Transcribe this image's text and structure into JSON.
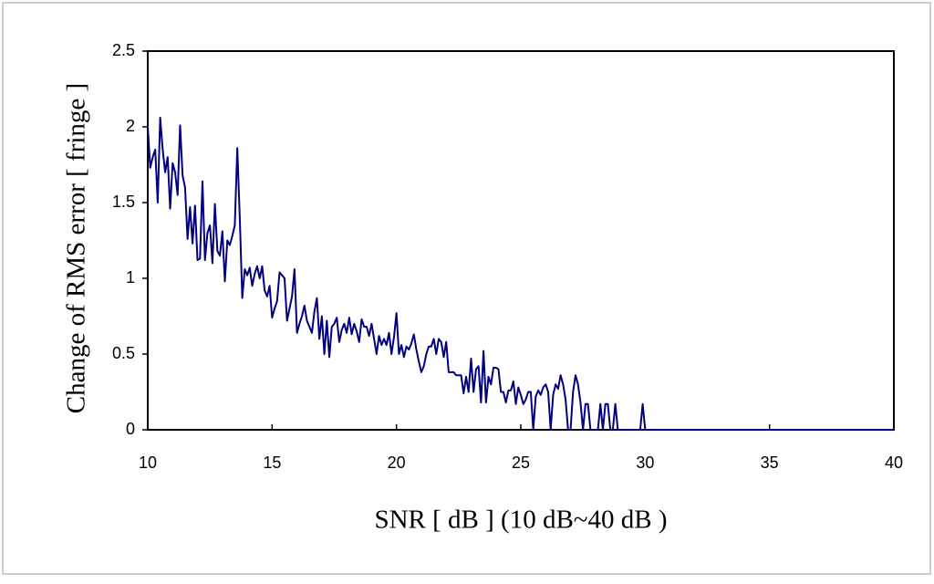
{
  "chart_data": {
    "type": "line",
    "x_label": "SNR [ dB ] (10 dB~40 dB )",
    "y_label": "Change of RMS error [ fringe ]",
    "x": [
      10,
      10.1,
      10.2,
      10.3,
      10.4,
      10.5,
      10.6,
      10.7,
      10.8,
      10.9,
      11,
      11.1,
      11.2,
      11.3,
      11.4,
      11.5,
      11.6,
      11.7,
      11.8,
      11.9,
      12,
      12.1,
      12.2,
      12.3,
      12.4,
      12.5,
      12.6,
      12.7,
      12.8,
      12.9,
      13,
      13.1,
      13.2,
      13.3,
      13.4,
      13.5,
      13.6,
      13.7,
      13.8,
      13.9,
      14,
      14.1,
      14.2,
      14.3,
      14.4,
      14.5,
      14.6,
      14.7,
      14.8,
      14.9,
      15,
      15.1,
      15.2,
      15.3,
      15.4,
      15.5,
      15.6,
      15.7,
      15.8,
      15.9,
      16,
      16.1,
      16.2,
      16.3,
      16.4,
      16.5,
      16.6,
      16.7,
      16.8,
      16.9,
      17,
      17.1,
      17.2,
      17.3,
      17.4,
      17.5,
      17.6,
      17.7,
      17.8,
      17.9,
      18,
      18.1,
      18.2,
      18.3,
      18.4,
      18.5,
      18.6,
      18.7,
      18.8,
      18.9,
      19,
      19.1,
      19.2,
      19.3,
      19.4,
      19.5,
      19.6,
      19.7,
      19.8,
      19.9,
      20,
      20.1,
      20.2,
      20.3,
      20.4,
      20.5,
      20.6,
      20.7,
      20.8,
      20.9,
      21,
      21.1,
      21.2,
      21.3,
      21.4,
      21.5,
      21.6,
      21.7,
      21.8,
      21.9,
      22,
      22.1,
      22.2,
      22.3,
      22.4,
      22.5,
      22.6,
      22.7,
      22.8,
      22.9,
      23,
      23.1,
      23.2,
      23.3,
      23.4,
      23.5,
      23.6,
      23.7,
      23.8,
      23.9,
      24,
      24.1,
      24.2,
      24.3,
      24.4,
      24.5,
      24.6,
      24.7,
      24.8,
      24.9,
      25,
      25.1,
      25.2,
      25.3,
      25.4,
      25.5,
      25.6,
      25.7,
      25.8,
      25.9,
      26,
      26.1,
      26.2,
      26.3,
      26.4,
      26.5,
      26.6,
      26.7,
      26.8,
      26.9,
      27,
      27.1,
      27.2,
      27.3,
      27.4,
      27.5,
      27.6,
      27.7,
      27.8,
      27.9,
      28,
      28.1,
      28.2,
      28.3,
      28.4,
      28.5,
      28.6,
      28.7,
      28.8,
      28.9,
      29,
      29.1,
      29.2,
      29.3,
      29.4,
      29.5,
      29.6,
      29.7,
      29.8,
      29.9,
      30,
      30.1,
      40
    ],
    "series": [
      {
        "color": "#000080",
        "values": [
          2.0,
          1.73,
          1.8,
          1.85,
          1.5,
          2.06,
          1.85,
          1.7,
          1.8,
          1.46,
          1.76,
          1.7,
          1.55,
          2.01,
          1.68,
          1.6,
          1.26,
          1.47,
          1.23,
          1.48,
          1.12,
          1.13,
          1.64,
          1.12,
          1.3,
          1.35,
          1.1,
          1.49,
          1.18,
          1.15,
          1.31,
          0.98,
          1.25,
          1.22,
          1.28,
          1.35,
          1.86,
          1.4,
          0.87,
          1.06,
          1.02,
          1.07,
          0.95,
          1.03,
          1.08,
          1.0,
          1.08,
          0.92,
          0.88,
          0.95,
          0.74,
          0.8,
          0.85,
          1.04,
          1.02,
          1.0,
          0.72,
          0.8,
          0.88,
          1.06,
          0.64,
          0.7,
          0.75,
          0.82,
          0.72,
          0.68,
          0.64,
          0.78,
          0.87,
          0.6,
          0.75,
          0.5,
          0.72,
          0.48,
          0.68,
          0.7,
          0.74,
          0.58,
          0.66,
          0.7,
          0.64,
          0.74,
          0.63,
          0.7,
          0.65,
          0.58,
          0.73,
          0.68,
          0.68,
          0.62,
          0.7,
          0.6,
          0.5,
          0.62,
          0.56,
          0.6,
          0.56,
          0.64,
          0.5,
          0.61,
          0.77,
          0.5,
          0.56,
          0.48,
          0.55,
          0.53,
          0.57,
          0.63,
          0.53,
          0.45,
          0.38,
          0.42,
          0.5,
          0.55,
          0.55,
          0.6,
          0.5,
          0.6,
          0.58,
          0.48,
          0.58,
          0.38,
          0.38,
          0.38,
          0.36,
          0.36,
          0.36,
          0.24,
          0.35,
          0.25,
          0.47,
          0.25,
          0.4,
          0.42,
          0.18,
          0.52,
          0.18,
          0.35,
          0.3,
          0.41,
          0.41,
          0.4,
          0.25,
          0.25,
          0.18,
          0.26,
          0.26,
          0.32,
          0.17,
          0.28,
          0.23,
          0.17,
          0.2,
          0.25,
          0.25,
          0,
          0.22,
          0.26,
          0.23,
          0.28,
          0.3,
          0.25,
          0,
          0.23,
          0.3,
          0.27,
          0.36,
          0.3,
          0.2,
          0,
          0,
          0.25,
          0.36,
          0.3,
          0.18,
          0,
          0.17,
          0.17,
          0,
          0,
          0,
          0,
          0.17,
          0,
          0.17,
          0.17,
          0,
          0,
          0.17,
          0,
          0,
          0,
          0,
          0,
          0,
          0,
          0,
          0,
          0,
          0.17,
          0,
          0,
          0
        ]
      }
    ],
    "xlim": [
      10,
      40
    ],
    "xticks": [
      10,
      15,
      20,
      25,
      30,
      35,
      40
    ],
    "ylim": [
      0,
      2.5
    ],
    "yticks": [
      0,
      0.5,
      1,
      1.5,
      2,
      2.5
    ]
  }
}
